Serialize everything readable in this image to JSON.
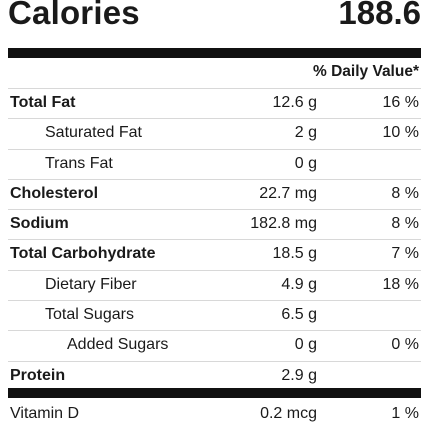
{
  "header": {
    "calories_label": "Calories",
    "calories_value": "188.6"
  },
  "daily_value_header": "% Daily Value*",
  "nutrients": [
    {
      "name": "Total Fat",
      "amount": "12.6 g",
      "dv": "16 %",
      "bold": true,
      "indent": 0
    },
    {
      "name": "Saturated Fat",
      "amount": "2 g",
      "dv": "10 %",
      "bold": false,
      "indent": 1
    },
    {
      "name": "Trans Fat",
      "amount": "0 g",
      "dv": "",
      "bold": false,
      "indent": 1
    },
    {
      "name": "Cholesterol",
      "amount": "22.7 mg",
      "dv": "8 %",
      "bold": true,
      "indent": 0
    },
    {
      "name": "Sodium",
      "amount": "182.8 mg",
      "dv": "8 %",
      "bold": true,
      "indent": 0
    },
    {
      "name": "Total Carbohydrate",
      "amount": "18.5 g",
      "dv": "7 %",
      "bold": true,
      "indent": 0
    },
    {
      "name": "Dietary Fiber",
      "amount": "4.9 g",
      "dv": "18 %",
      "bold": false,
      "indent": 1
    },
    {
      "name": "Total Sugars",
      "amount": "6.5 g",
      "dv": "",
      "bold": false,
      "indent": 1
    },
    {
      "name": "Added Sugars",
      "amount": "0 g",
      "dv": "0 %",
      "bold": false,
      "indent": 2
    },
    {
      "name": "Protein",
      "amount": "2.9 g",
      "dv": "",
      "bold": true,
      "indent": 0
    }
  ],
  "vitamins": [
    {
      "name": "Vitamin D",
      "amount": "0.2 mcg",
      "dv": "1 %"
    }
  ]
}
